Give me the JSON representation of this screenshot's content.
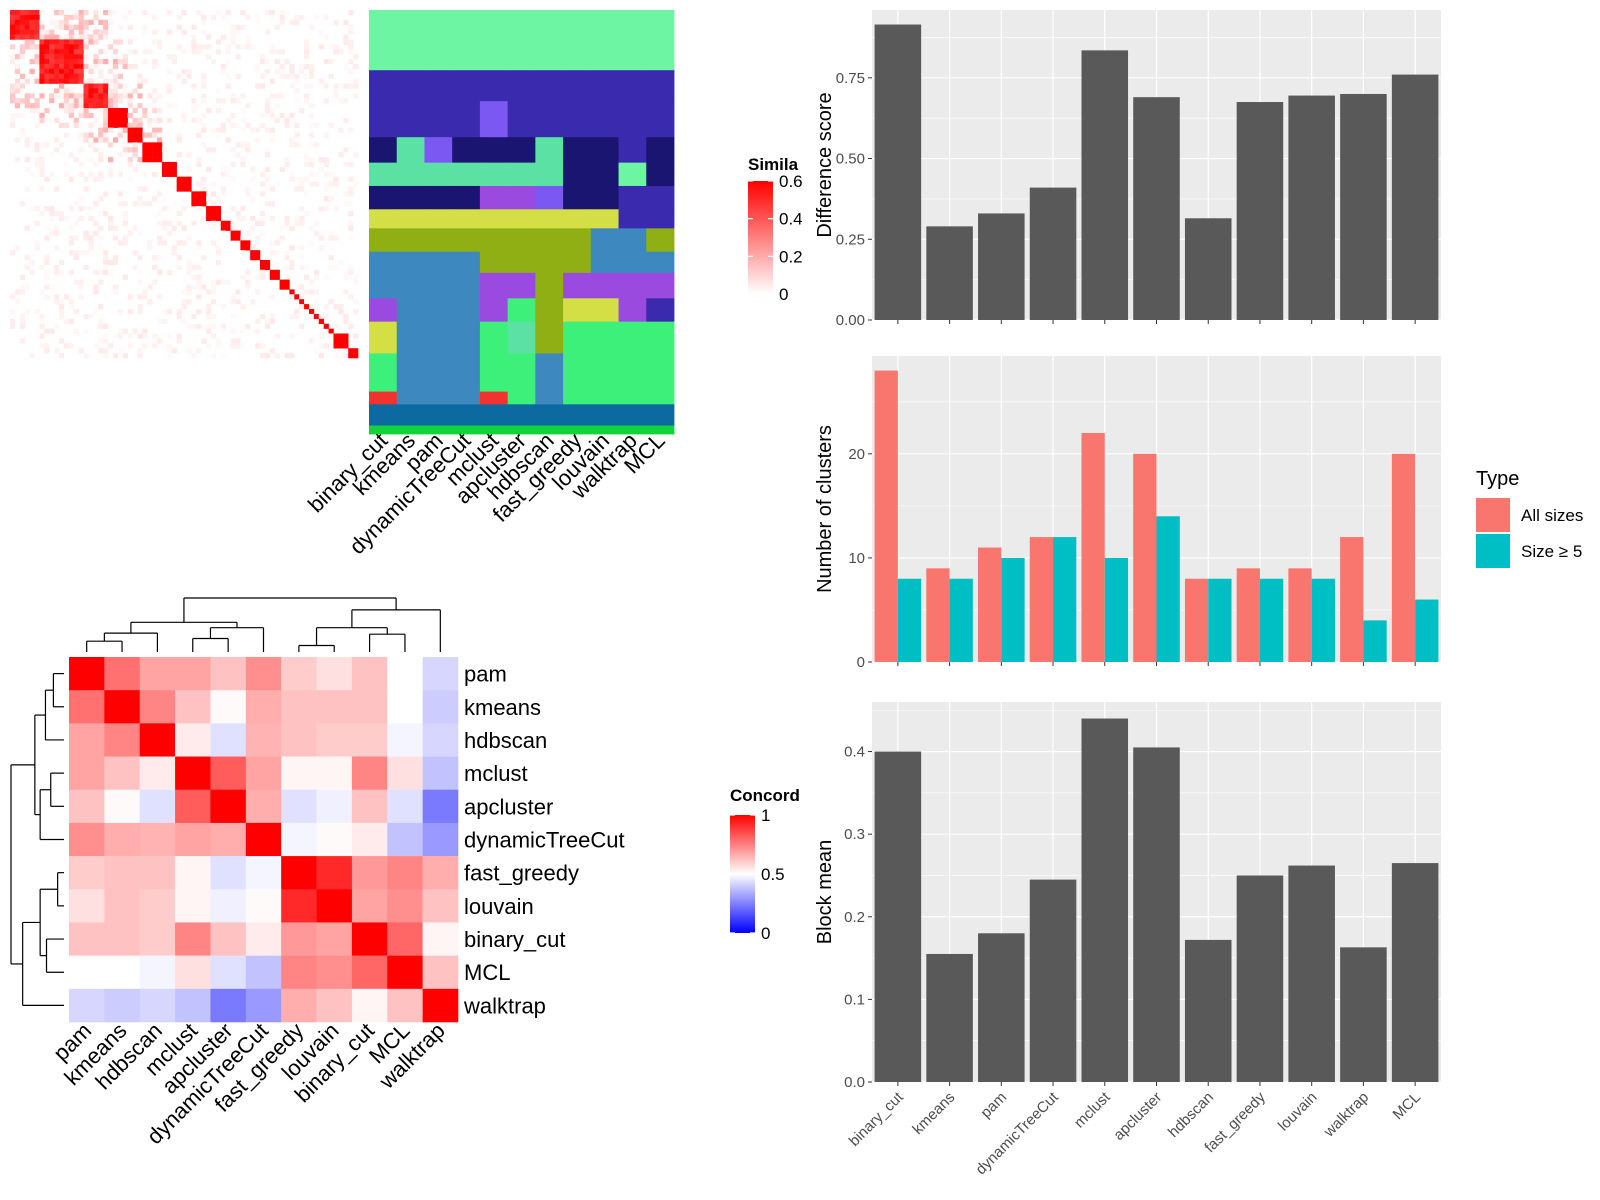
{
  "colors": {
    "panel_bg": "#EBEBEB",
    "grid": "#FFFFFF",
    "bar": "#595959",
    "all_sizes": "#F8766D",
    "size_ge_5": "#00BFC4"
  },
  "chart_data": [
    {
      "id": "similarity_heatmap",
      "type": "heatmap",
      "description_columns": [
        "binary_cut",
        "kmeans",
        "pam",
        "dynamicTreeCut",
        "mclust",
        "apcluster",
        "hdbscan",
        "fast_greedy",
        "louvain",
        "walktrap",
        "MCL"
      ],
      "legend": {
        "title": "Simila",
        "ticks": [
          "0.6",
          "0.4",
          "0.2",
          "0"
        ],
        "range": [
          0,
          0.6
        ]
      },
      "diagonal_blocks": [
        6,
        9,
        5,
        4,
        3,
        4,
        3,
        3,
        3,
        3,
        2,
        2,
        2,
        2,
        2,
        2,
        2,
        1,
        1,
        1,
        1,
        1,
        1,
        1,
        1,
        1,
        3,
        2
      ]
    },
    {
      "id": "concordance_heatmap",
      "type": "heatmap",
      "rows": [
        "pam",
        "kmeans",
        "hdbscan",
        "mclust",
        "apcluster",
        "dynamicTreeCut",
        "fast_greedy",
        "louvain",
        "binary_cut",
        "MCL",
        "walktrap"
      ],
      "columns": [
        "pam",
        "kmeans",
        "hdbscan",
        "mclust",
        "apcluster",
        "dynamicTreeCut",
        "fast_greedy",
        "louvain",
        "binary_cut",
        "MCL",
        "walktrap"
      ],
      "legend": {
        "title": "Concord",
        "ticks": [
          "1",
          "0.5",
          "0"
        ],
        "range": [
          0,
          1
        ]
      },
      "values": [
        [
          1.0,
          0.78,
          0.68,
          0.68,
          0.62,
          0.72,
          0.6,
          0.56,
          0.62,
          0.5,
          0.42
        ],
        [
          0.78,
          1.0,
          0.74,
          0.62,
          0.51,
          0.66,
          0.62,
          0.62,
          0.62,
          0.5,
          0.4
        ],
        [
          0.68,
          0.74,
          1.0,
          0.54,
          0.44,
          0.65,
          0.62,
          0.6,
          0.6,
          0.48,
          0.42
        ],
        [
          0.68,
          0.62,
          0.54,
          1.0,
          0.82,
          0.68,
          0.52,
          0.52,
          0.74,
          0.56,
          0.38
        ],
        [
          0.62,
          0.51,
          0.44,
          0.82,
          1.0,
          0.66,
          0.44,
          0.47,
          0.62,
          0.44,
          0.24
        ],
        [
          0.72,
          0.66,
          0.65,
          0.68,
          0.66,
          1.0,
          0.48,
          0.51,
          0.54,
          0.38,
          0.3
        ],
        [
          0.6,
          0.62,
          0.62,
          0.52,
          0.44,
          0.48,
          1.0,
          0.92,
          0.7,
          0.74,
          0.66
        ],
        [
          0.56,
          0.62,
          0.6,
          0.52,
          0.47,
          0.51,
          0.92,
          1.0,
          0.68,
          0.72,
          0.62
        ],
        [
          0.62,
          0.62,
          0.6,
          0.74,
          0.62,
          0.54,
          0.7,
          0.68,
          1.0,
          0.8,
          0.52
        ],
        [
          0.5,
          0.5,
          0.48,
          0.56,
          0.44,
          0.38,
          0.74,
          0.72,
          0.8,
          1.0,
          0.62
        ],
        [
          0.42,
          0.4,
          0.42,
          0.38,
          0.24,
          0.3,
          0.66,
          0.62,
          0.52,
          0.62,
          1.0
        ]
      ]
    },
    {
      "id": "difference_score",
      "type": "bar",
      "categories": [
        "binary_cut",
        "kmeans",
        "pam",
        "dynamicTreeCut",
        "mclust",
        "apcluster",
        "hdbscan",
        "fast_greedy",
        "louvain",
        "walktrap",
        "MCL"
      ],
      "values": [
        0.915,
        0.29,
        0.33,
        0.41,
        0.835,
        0.69,
        0.315,
        0.675,
        0.695,
        0.7,
        0.76
      ],
      "ylabel": "Difference score",
      "ylim": [
        0,
        0.96
      ],
      "yticks": [
        0,
        0.25,
        0.5,
        0.75
      ],
      "ytick_labels": [
        "0.00",
        "0.25",
        "0.50",
        "0.75"
      ],
      "grid": true
    },
    {
      "id": "number_of_clusters",
      "type": "bar",
      "categories": [
        "binary_cut",
        "kmeans",
        "pam",
        "dynamicTreeCut",
        "mclust",
        "apcluster",
        "hdbscan",
        "fast_greedy",
        "louvain",
        "walktrap",
        "MCL"
      ],
      "series": [
        {
          "name": "All sizes",
          "values": [
            28,
            9,
            11,
            12,
            22,
            20,
            8,
            9,
            9,
            12,
            20
          ]
        },
        {
          "name": "Size ≥ 5",
          "values": [
            8,
            8,
            10,
            12,
            10,
            14,
            8,
            8,
            8,
            4,
            6
          ]
        }
      ],
      "ylabel": "Number of clusters",
      "ylim": [
        0,
        29.4
      ],
      "yticks": [
        0,
        10,
        20
      ],
      "ytick_labels": [
        "0",
        "10",
        "20"
      ],
      "legend": {
        "title": "Type",
        "position": "right"
      },
      "grid": true
    },
    {
      "id": "block_mean",
      "type": "bar",
      "categories": [
        "binary_cut",
        "kmeans",
        "pam",
        "dynamicTreeCut",
        "mclust",
        "apcluster",
        "hdbscan",
        "fast_greedy",
        "louvain",
        "walktrap",
        "MCL"
      ],
      "values": [
        0.4,
        0.155,
        0.18,
        0.245,
        0.44,
        0.405,
        0.172,
        0.25,
        0.262,
        0.163,
        0.265
      ],
      "ylabel": "Block mean",
      "ylim": [
        0,
        0.46
      ],
      "yticks": [
        0,
        0.1,
        0.2,
        0.3,
        0.4
      ],
      "ytick_labels": [
        "0.0",
        "0.1",
        "0.2",
        "0.3",
        "0.4"
      ],
      "grid": true
    }
  ]
}
